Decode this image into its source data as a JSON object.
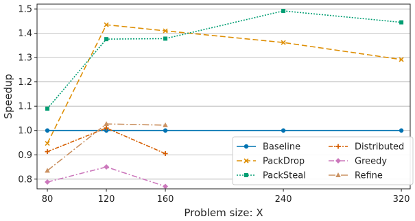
{
  "chart_data": {
    "type": "line",
    "title": "",
    "xlabel": "Problem size: X",
    "ylabel": "Speedup",
    "x_ticks": [
      80,
      120,
      160,
      240,
      320
    ],
    "y_ticks": [
      "0.8",
      "0.9",
      "1.0",
      "1.1",
      "1.2",
      "1.3",
      "1.4",
      "1.5"
    ],
    "xlim": [
      73,
      326
    ],
    "ylim": [
      0.76,
      1.52
    ],
    "grid": "y",
    "legend_position": "lower-right",
    "series": [
      {
        "name": "Baseline",
        "color": "#0173b2",
        "dash": "",
        "marker": "circle",
        "x": [
          80,
          120,
          160,
          240,
          320
        ],
        "y": [
          1.0,
          1.0,
          1.0,
          1.0,
          1.0
        ]
      },
      {
        "name": "PackDrop",
        "color": "#de8f05",
        "dash": "8,4",
        "marker": "x",
        "x": [
          80,
          120,
          160,
          240,
          320
        ],
        "y": [
          0.947,
          1.435,
          1.41,
          1.362,
          1.292
        ]
      },
      {
        "name": "PackSteal",
        "color": "#029e73",
        "dash": "2,2",
        "marker": "square",
        "x": [
          80,
          120,
          160,
          240,
          320
        ],
        "y": [
          1.09,
          1.376,
          1.378,
          1.492,
          1.445
        ]
      },
      {
        "name": "Distributed",
        "color": "#d55e00",
        "dash": "6,2,2,2",
        "marker": "plus",
        "x": [
          80,
          120,
          160
        ],
        "y": [
          0.913,
          1.01,
          0.905
        ]
      },
      {
        "name": "Greedy",
        "color": "#cc78bc",
        "dash": "8,3,2,3",
        "marker": "diamond",
        "x": [
          80,
          120,
          160
        ],
        "y": [
          0.788,
          0.85,
          0.77
        ]
      },
      {
        "name": "Refine",
        "color": "#ca9161",
        "dash": "10,3,2,3",
        "marker": "triangle",
        "x": [
          80,
          120,
          160
        ],
        "y": [
          0.835,
          1.027,
          1.022
        ]
      }
    ]
  }
}
